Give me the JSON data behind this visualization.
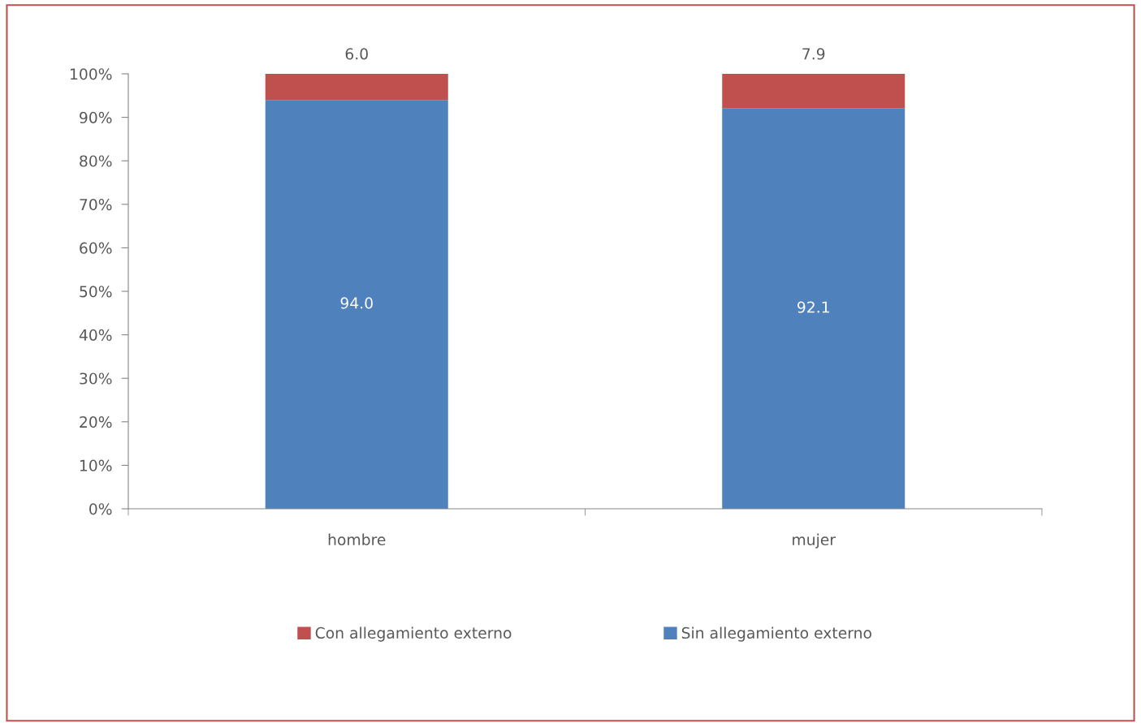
{
  "chart_data": {
    "type": "bar",
    "stacked": true,
    "categories": [
      "hombre",
      "mujer"
    ],
    "series": [
      {
        "name": "Sin allegamiento externo",
        "color": "#4f81bd",
        "values": [
          94.0,
          92.1
        ],
        "value_labels": [
          "94.0",
          "92.1"
        ]
      },
      {
        "name": "Con allegamiento externo",
        "color": "#c0504d",
        "values": [
          6.0,
          7.9
        ],
        "value_labels": [
          "6.0",
          "7.9"
        ]
      }
    ],
    "ylim": [
      0,
      100
    ],
    "yticks": [
      {
        "value": 0,
        "label": "0%"
      },
      {
        "value": 10,
        "label": "10%"
      },
      {
        "value": 20,
        "label": "20%"
      },
      {
        "value": 30,
        "label": "30%"
      },
      {
        "value": 40,
        "label": "40%"
      },
      {
        "value": 50,
        "label": "50%"
      },
      {
        "value": 60,
        "label": "60%"
      },
      {
        "value": 70,
        "label": "70%"
      },
      {
        "value": 80,
        "label": "80%"
      },
      {
        "value": 90,
        "label": "90%"
      },
      {
        "value": 100,
        "label": "100%"
      }
    ],
    "grid": false,
    "legend": "bottom"
  }
}
